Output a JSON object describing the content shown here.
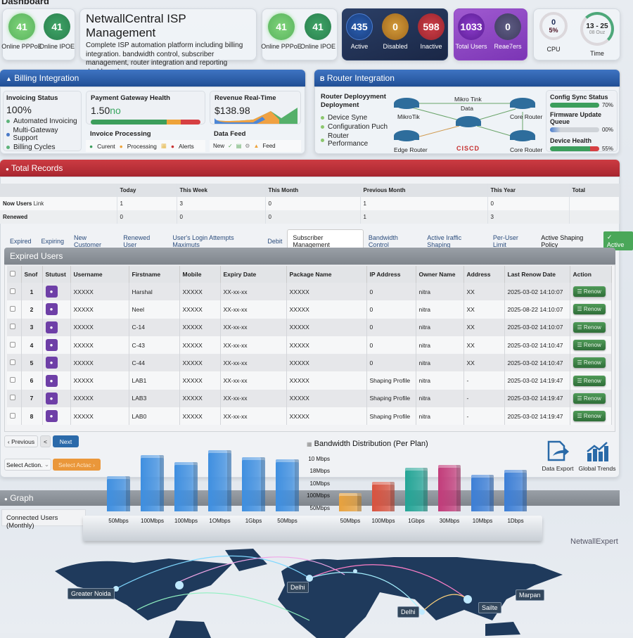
{
  "header": {
    "page_label": "Dashboard",
    "title": "NetwallCentral ISP Management",
    "description": "Complete ISP automation platform including billing integration. bandwidth control, subscriber management, router integration and reporting dashboards."
  },
  "stats_left": [
    {
      "value": "41",
      "label": "Online PPPoE",
      "color": "#6fc36a"
    },
    {
      "value": "41",
      "label": "Online IPOE",
      "color": "#2f8f55"
    }
  ],
  "stats_mid": [
    {
      "value": "41",
      "label": "Online PPPoE",
      "color": "#6fc36a"
    },
    {
      "value": "41",
      "label": "Online IPOE",
      "color": "#2f8f55"
    }
  ],
  "stats_status": [
    {
      "value": "435",
      "label": "Active",
      "color": "#1f4f9e"
    },
    {
      "value": "0",
      "label": "Disabled",
      "color": "#c98a26"
    },
    {
      "value": "598",
      "label": "Inactive",
      "color": "#b8343e"
    }
  ],
  "stats_users": [
    {
      "value": "1033",
      "label": "Total Users",
      "color": "#7a2fb6"
    },
    {
      "value": "0",
      "label": "Reae7ers",
      "color": "#5a4f80"
    }
  ],
  "gauges": {
    "cpu": {
      "value": "0",
      "percent": "5%",
      "label": "CPU"
    },
    "time": {
      "value": "13 - 25",
      "sub": "08 Ouz",
      "label": "Time"
    }
  },
  "billing": {
    "title": "Billing Integration",
    "invoicing_status": {
      "title": "Invoicing Status",
      "value": "100%",
      "items": [
        {
          "label": "Automated Invoicing",
          "color": "#5db37a"
        },
        {
          "label": "Multi-Gateway Support",
          "color": "#4a7ac7"
        },
        {
          "label": "Billing Cycles",
          "color": "#5db37a"
        }
      ]
    },
    "gateway": {
      "title": "Payment Gateway Health",
      "value": "1.50",
      "unit": "no"
    },
    "revenue": {
      "title": "Revenue Real-Time",
      "value": "$138.98"
    },
    "invoice_processing": {
      "title": "Invoice Processing",
      "items": [
        "Curent",
        "Processing",
        "Alerts"
      ]
    },
    "data_feed": {
      "title": "Data Feed",
      "items": [
        "New",
        "Feed"
      ]
    }
  },
  "router": {
    "title": "Router Integration",
    "deployment": {
      "title": "Router Deployyment Deployment",
      "items": [
        "Device Syne",
        "Configuration Puch",
        "Router Performance"
      ]
    },
    "diagram": {
      "nodes": [
        "MikroTik",
        "Core Router",
        "Edge Router",
        "Core Router"
      ],
      "link_label_top": "Mikro Tink",
      "center_label": "Data",
      "brand": "CISCD"
    },
    "status": [
      {
        "title": "Config Sync Status",
        "percent": "70%"
      },
      {
        "title": "Firmware Update Queue",
        "percent": "00%"
      },
      {
        "title": "Device Health",
        "percent": "55%"
      }
    ]
  },
  "total_records": {
    "title": "Total Records",
    "columns": [
      "",
      "Today",
      "This Week",
      "This Month",
      "Previous Month",
      "This Year",
      "Total"
    ],
    "rows": [
      {
        "label": "Now Users",
        "link": "Link",
        "values": [
          "1",
          "3",
          "0",
          "1",
          "0",
          ""
        ]
      },
      {
        "label": "Renewed",
        "link": "",
        "values": [
          "0",
          "0",
          "0",
          "1",
          "3",
          ""
        ]
      }
    ]
  },
  "tabs": {
    "items": [
      "Expired",
      "Expiring",
      "New Customer",
      "Renewed User",
      "User's Login Attempts Maximuts",
      "Debit",
      "Subscriber Management",
      "Bandwidth Control",
      "Active Iraffic Shaping",
      "Per-User Limit"
    ],
    "active_index": 6,
    "policy_label": "Active Shaping Policy",
    "policy_badge": "Active"
  },
  "expired_users": {
    "title": "Expired Users",
    "columns": [
      "",
      "Snof",
      "Stutust",
      "Username",
      "Firstname",
      "Mobile",
      "Expiry Date",
      "Package Name",
      "IP Address",
      "Owner Name",
      "Address",
      "Last Renow Date",
      "Action"
    ],
    "rows": [
      {
        "sn": "1",
        "username": "XXXXX",
        "firstname": "Harshal",
        "mobile": "XXXXX",
        "expiry": "XX-xx-xx",
        "package": "XXXXX",
        "ip": "0",
        "owner": "nitra",
        "address": "XX",
        "last_renew": "2025-03-02 14:10:07"
      },
      {
        "sn": "2",
        "username": "XXXXX",
        "firstname": "Neel",
        "mobile": "XXXXX",
        "expiry": "XX-xx-xx",
        "package": "XXXXX",
        "ip": "0",
        "owner": "nitra",
        "address": "XX",
        "last_renew": "2025-08-22 14:10:07"
      },
      {
        "sn": "3",
        "username": "XXXXX",
        "firstname": "C-14",
        "mobile": "XXXXX",
        "expiry": "XX-xx-xx",
        "package": "XXXXX",
        "ip": "0",
        "owner": "nitra",
        "address": "XX",
        "last_renew": "2025-03-02 14:10:07"
      },
      {
        "sn": "4",
        "username": "XXXXX",
        "firstname": "C-43",
        "mobile": "XXXXX",
        "expiry": "XX-xx-xx",
        "package": "XXXXX",
        "ip": "0",
        "owner": "nitra",
        "address": "XX",
        "last_renew": "2025-03-02 14:10:47"
      },
      {
        "sn": "5",
        "username": "XXXXX",
        "firstname": "C-44",
        "mobile": "XXXXX",
        "expiry": "XX-xx-xx",
        "package": "XXXXX",
        "ip": "0",
        "owner": "nitra",
        "address": "XX",
        "last_renew": "2025-03-02 14:10:47"
      },
      {
        "sn": "6",
        "username": "XXXXX",
        "firstname": "LAB1",
        "mobile": "XXXXX",
        "expiry": "XX-xx-xx",
        "package": "XXXXX",
        "ip": "Shaping Profile",
        "owner": "nitra",
        "address": "-",
        "last_renew": "2025-03-02 14:19:47"
      },
      {
        "sn": "7",
        "username": "XXXXX",
        "firstname": "LAB3",
        "mobile": "XXXXX",
        "expiry": "XX-xx-xx",
        "package": "XXXXX",
        "ip": "Shaping Profile",
        "owner": "nitra",
        "address": "-",
        "last_renew": "2025-03-02 14:19:47"
      },
      {
        "sn": "8",
        "username": "XXXXX",
        "firstname": "LAB0",
        "mobile": "XXXXX",
        "expiry": "XX-xx-xx",
        "package": "XXXXX",
        "ip": "Shaping Profile",
        "owner": "nitra",
        "address": "-",
        "last_renew": "2025-03-02 14:19:47"
      }
    ],
    "action_label": "Renow"
  },
  "pagination": {
    "previous": "Previous",
    "back": "<",
    "next": "Next"
  },
  "bulk_action": {
    "select_label": "Select Action.",
    "button_label": "Select Actac"
  },
  "graph": {
    "title": "Graph",
    "tab": "Connected Users (Monthly)"
  },
  "tools": [
    {
      "label": "Data Export"
    },
    {
      "label": "Global Trends"
    }
  ],
  "brand_watermark": "NetwallExpert",
  "map_labels": [
    "Greater Noida",
    "Delhi",
    "Delhi",
    "Sailte",
    "Marpan"
  ],
  "chart_data": [
    {
      "type": "bar",
      "title": "Connected Users (Monthly)",
      "categories": [
        "50Mbps",
        "100Mbps",
        "100Mbps",
        "1OMbps",
        "1Gbps",
        "50Mbps"
      ],
      "values": [
        58,
        92,
        80,
        100,
        88,
        85
      ],
      "colors": [
        "#3f8fe0",
        "#3f8fe0",
        "#3f8fe0",
        "#3f8fe0",
        "#3f8fe0",
        "#3f8fe0"
      ]
    },
    {
      "type": "bar",
      "title": "Bandwidth Distribution (Per Plan)",
      "categories": [
        "50Mbps",
        "100Mbps",
        "1Gbps",
        "30Mbps",
        "10Mbps",
        "1Dbps"
      ],
      "values": [
        32,
        52,
        77,
        83,
        65,
        74
      ],
      "y_tick_labels": [
        "10 Mbps",
        "18Mbps",
        "10Mbps",
        "100Mbps",
        "50Mbps"
      ],
      "colors": [
        "#e8a23e",
        "#d9533f",
        "#24a596",
        "#c23c7a",
        "#3d7fd6",
        "#3d7fd6"
      ]
    }
  ]
}
